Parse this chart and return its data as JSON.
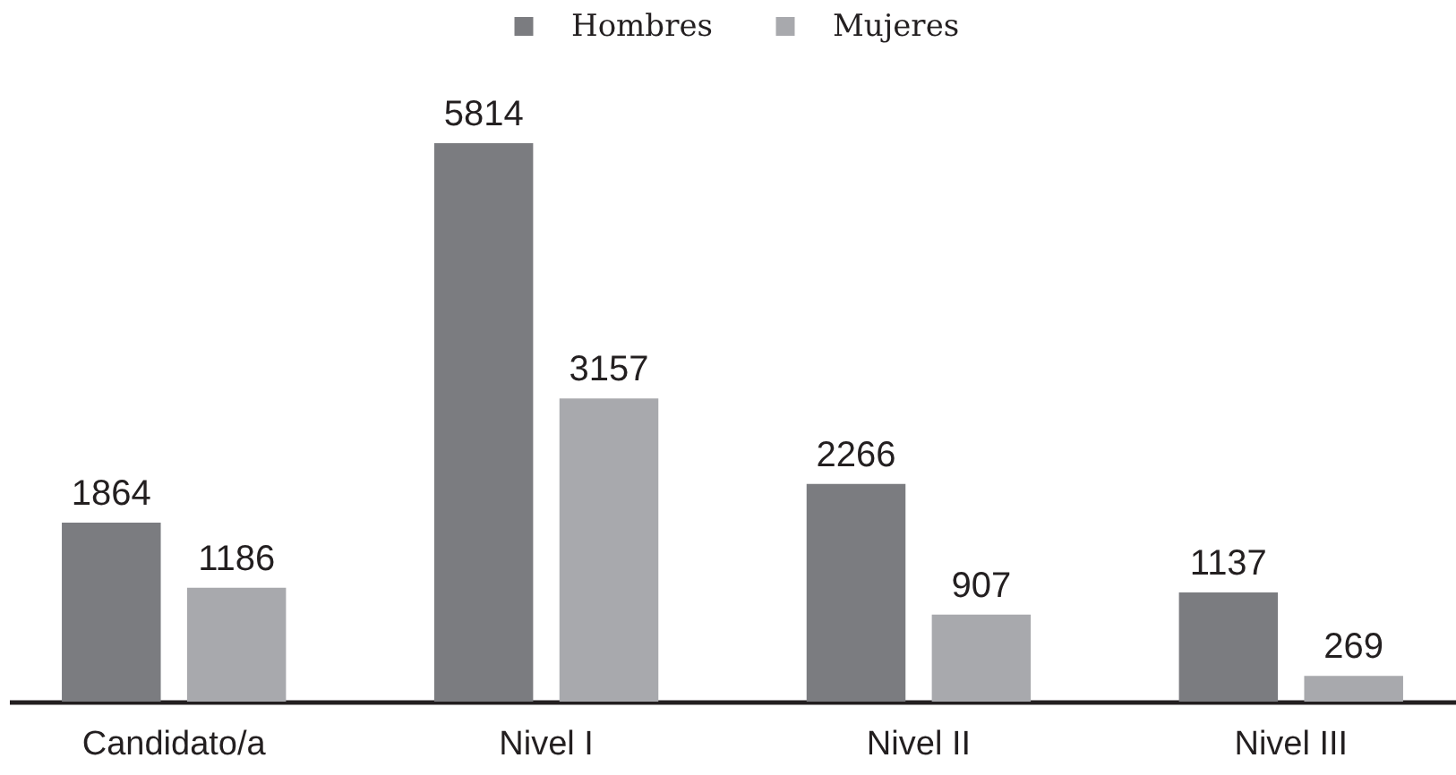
{
  "chart_data": {
    "type": "bar",
    "categories": [
      "Candidato/a",
      "Nivel I",
      "Nivel II",
      "Nivel III"
    ],
    "series": [
      {
        "name": "Hombres",
        "color": "#7b7c80",
        "values": [
          1864,
          5814,
          2266,
          1137
        ]
      },
      {
        "name": "Mujeres",
        "color": "#a8a9ad",
        "values": [
          1186,
          3157,
          907,
          269
        ]
      }
    ],
    "data_labels": true,
    "legend": "top"
  }
}
